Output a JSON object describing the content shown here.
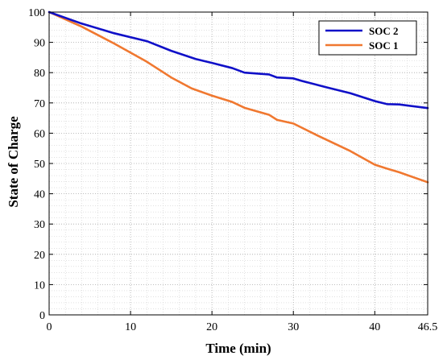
{
  "chart_data": {
    "type": "line",
    "title": "",
    "xlabel": "Time (min)",
    "ylabel": "State of Charge",
    "xlim": [
      0,
      46.5
    ],
    "ylim": [
      0,
      100
    ],
    "x_ticks": [
      0,
      10,
      20,
      30,
      40,
      46.5
    ],
    "x_tick_labels": [
      "0",
      "10",
      "20",
      "30",
      "40",
      "46.5"
    ],
    "y_ticks": [
      0,
      10,
      20,
      30,
      40,
      50,
      60,
      70,
      80,
      90,
      100
    ],
    "y_tick_labels": [
      "0",
      "10",
      "20",
      "30",
      "40",
      "50",
      "60",
      "70",
      "80",
      "90",
      "100"
    ],
    "grid": "dotted, major and minor",
    "legend_position": "top-right",
    "series": [
      {
        "name": "SOC 2",
        "color": "#1010c8",
        "points": [
          [
            0,
            100
          ],
          [
            4,
            96.2
          ],
          [
            8,
            93.0
          ],
          [
            12,
            90.4
          ],
          [
            15,
            87.2
          ],
          [
            18,
            84.5
          ],
          [
            20,
            83.2
          ],
          [
            22.5,
            81.5
          ],
          [
            24,
            80.0
          ],
          [
            27,
            79.4
          ],
          [
            28,
            78.4
          ],
          [
            30,
            78.1
          ],
          [
            31,
            77.3
          ],
          [
            34,
            75.2
          ],
          [
            37,
            73.2
          ],
          [
            40,
            70.6
          ],
          [
            41.5,
            69.6
          ],
          [
            43,
            69.5
          ],
          [
            46.5,
            68.3
          ]
        ]
      },
      {
        "name": "SOC 1",
        "color": "#f07830",
        "points": [
          [
            0,
            100
          ],
          [
            4,
            95.2
          ],
          [
            8,
            89.6
          ],
          [
            12,
            83.6
          ],
          [
            15,
            78.4
          ],
          [
            17.5,
            74.8
          ],
          [
            20,
            72.4
          ],
          [
            22.5,
            70.3
          ],
          [
            24,
            68.4
          ],
          [
            27,
            66.1
          ],
          [
            28,
            64.4
          ],
          [
            30,
            63.2
          ],
          [
            33,
            59.2
          ],
          [
            37,
            54.1
          ],
          [
            40,
            49.6
          ],
          [
            41.5,
            48.3
          ],
          [
            43,
            47.1
          ],
          [
            46.5,
            43.8
          ]
        ]
      }
    ]
  }
}
